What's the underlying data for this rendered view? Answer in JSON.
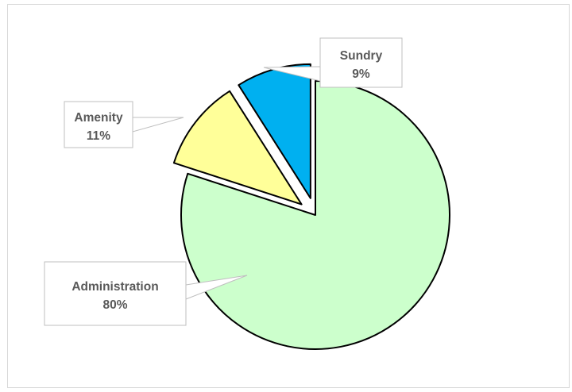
{
  "chart_data": {
    "type": "pie",
    "title": "",
    "slices": [
      {
        "name": "Administration",
        "value": 80,
        "label": "80%",
        "color": "#ccffcc"
      },
      {
        "name": "Amenity",
        "value": 11,
        "label": "11%",
        "color": "#ffff99"
      },
      {
        "name": "Sundry",
        "value": 9,
        "label": "9%",
        "color": "#00b0f0"
      }
    ],
    "exploded": true,
    "legend": "none",
    "data_labels": "callout boxes with category name and percentage"
  }
}
